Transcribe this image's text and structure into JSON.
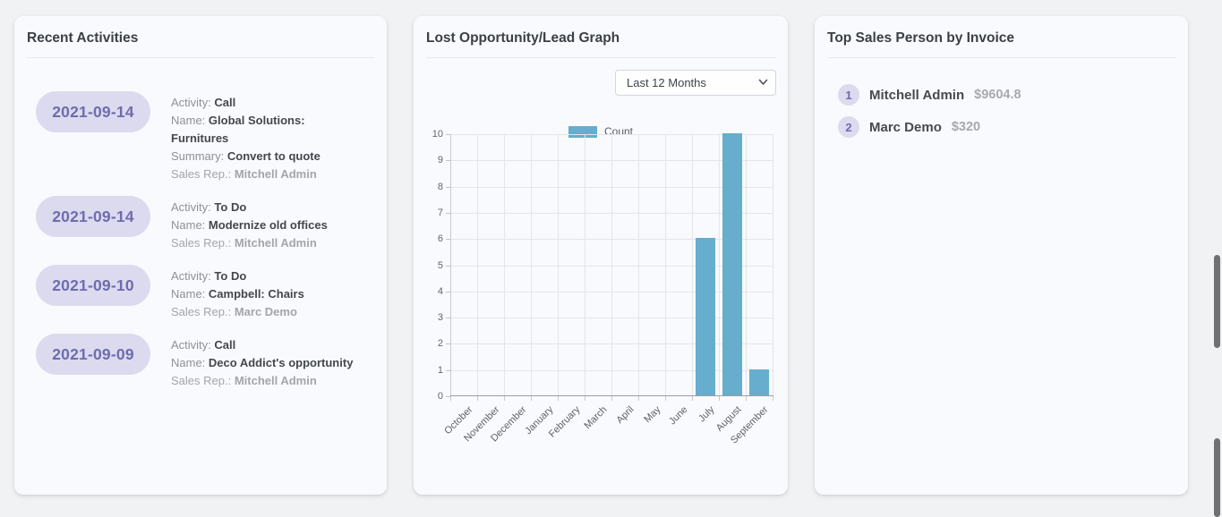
{
  "colors": {
    "bar": "#66adce",
    "badge_bg": "#dcdaee",
    "badge_text": "#6e6cae"
  },
  "cards": {
    "recent_activities": {
      "title": "Recent Activities",
      "field_labels": {
        "activity": "Activity:",
        "name": "Name:",
        "summary": "Summary:",
        "sales_rep": "Sales Rep.:"
      },
      "items": [
        {
          "date": "2021-09-14",
          "activity": "Call",
          "name": "Global Solutions: Furnitures",
          "summary": "Convert to quote",
          "sales_rep": "Mitchell Admin"
        },
        {
          "date": "2021-09-14",
          "activity": "To Do",
          "name": "Modernize old offices",
          "sales_rep": "Mitchell Admin"
        },
        {
          "date": "2021-09-10",
          "activity": "To Do",
          "name": "Campbell: Chairs",
          "sales_rep": "Marc Demo"
        },
        {
          "date": "2021-09-09",
          "activity": "Call",
          "name": "Deco Addict's opportunity",
          "sales_rep": "Mitchell Admin"
        }
      ]
    },
    "lost_opportunity": {
      "title": "Lost Opportunity/Lead Graph",
      "period_selector": {
        "selected": "Last 12 Months",
        "options": [
          "Last 12 Months"
        ]
      }
    },
    "top_sales": {
      "title": "Top Sales Person by Invoice",
      "items": [
        {
          "rank": "1",
          "name": "Mitchell Admin",
          "amount": "$9604.8"
        },
        {
          "rank": "2",
          "name": "Marc Demo",
          "amount": "$320"
        }
      ]
    }
  },
  "chart_data": {
    "type": "bar",
    "title": "Lost Opportunity/Lead Graph",
    "categories": [
      "October",
      "November",
      "December",
      "January",
      "February",
      "March",
      "April",
      "May",
      "June",
      "July",
      "August",
      "September"
    ],
    "series": [
      {
        "name": "Count",
        "values": [
          0,
          0,
          0,
          0,
          0,
          0,
          0,
          0,
          0,
          6,
          10,
          1
        ]
      }
    ],
    "xlabel": "",
    "ylabel": "",
    "ylim": [
      0,
      10
    ],
    "ytick_step": 1,
    "grid": true,
    "legend_position": "top"
  }
}
